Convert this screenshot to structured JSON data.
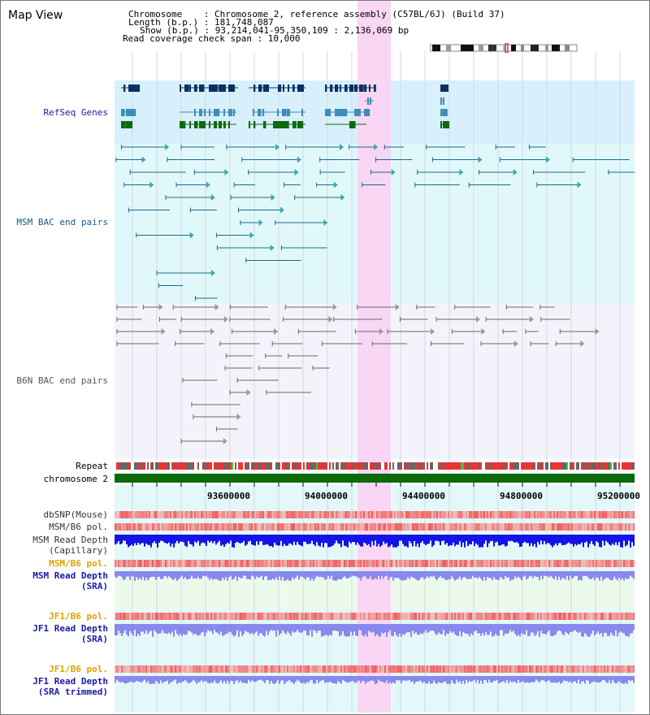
{
  "header": {
    "title": "Map View",
    "info": {
      "chromosome": "Chromosome    : Chromosome 2, reference assembly (C57BL/6J) (Build 37)",
      "length": "Length (b.p.) : 181,748,087",
      "show": "Show (b.p.) : 93,214,041-95,350,109 : 2,136,069 bp",
      "coverage": "Read coverage check span : 10,000"
    }
  },
  "colors": {
    "refseq_bg": "#d7f0fb",
    "msm_bac_bg": "#e1f8fb",
    "b6n_bac_bg": "#f3f3fb",
    "lower_bg": "#e3f8f8",
    "sra_bg": "#ecfaec",
    "highlight": "#f8d6f4",
    "gene_dark": "#0d3060",
    "gene_mid": "#3f8db6",
    "gene_green": "#0d6b0d",
    "msm_line": "#1a6a8a",
    "b6n_line": "#6a6a6a",
    "chromosome_bar": "#0a6a0a",
    "snp": "#f08a8a",
    "depth_capillary": "#1414e8",
    "depth_sra": "#8888ee"
  },
  "tracks": {
    "refseq": "RefSeq Genes",
    "msm_bac": "MSM BAC end pairs",
    "b6n_bac": "B6N BAC end pairs",
    "repeat": "Repeat",
    "chromosome": "chromosome 2",
    "dbsnp": "dbSNP(Mouse)",
    "msm_b6_pol_1": "MSM/B6 pol.",
    "msm_depth_cap_1": "MSM Read Depth",
    "msm_depth_cap_2": "(Capillary)",
    "msm_b6_pol_2": "MSM/B6 pol.",
    "msm_depth_sra_1": "MSM Read Depth",
    "msm_depth_sra_2": "(SRA)",
    "jf1_b6_pol_1": "JF1/B6 pol.",
    "jf1_depth_sra_1": "JF1 Read Depth",
    "jf1_depth_sra_2": "(SRA)",
    "jf1_b6_pol_2": "JF1/B6 pol.",
    "jf1_depth_trim_1": "JF1 Read Depth",
    "jf1_depth_trim_2": "(SRA trimmed)"
  },
  "axis": {
    "ticks": [
      "93600000",
      "94000000",
      "94400000",
      "94800000",
      "95200000"
    ]
  }
}
